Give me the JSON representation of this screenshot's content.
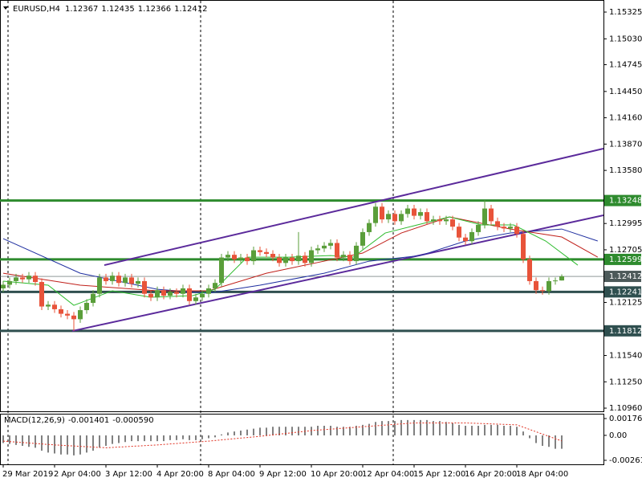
{
  "chart_data": {
    "type": "candlestick",
    "header": {
      "symbol": "EURUSD,H4",
      "values": [
        1.12367,
        1.12435,
        1.12366,
        1.12412
      ]
    },
    "categories": [
      "29 Mar 2019",
      null,
      null,
      null,
      null,
      null,
      null,
      null,
      "2 Apr 04:00",
      null,
      null,
      null,
      null,
      null,
      null,
      null,
      "3 Apr 12:00",
      null,
      null,
      null,
      null,
      null,
      null,
      null,
      "4 Apr 20:00",
      null,
      null,
      null,
      null,
      null,
      null,
      null,
      "8 Apr 04:00",
      null,
      null,
      null,
      null,
      null,
      null,
      null,
      "9 Apr 12:00",
      null,
      null,
      null,
      null,
      null,
      null,
      null,
      "10 Apr 20:00",
      null,
      null,
      null,
      null,
      null,
      null,
      null,
      "12 Apr 04:00",
      null,
      null,
      null,
      null,
      null,
      null,
      null,
      "15 Apr 12:00",
      null,
      null,
      null,
      null,
      null,
      null,
      null,
      "16 Apr 20:00",
      null,
      null,
      null,
      null,
      null,
      null,
      null,
      "18 Apr 04:00",
      null,
      null,
      null,
      null,
      null,
      null,
      null
    ],
    "open": [
      1.1228,
      1.1232,
      1.1236,
      1.124,
      1.1238,
      1.1242,
      1.1235,
      1.1208,
      1.121,
      1.1205,
      1.12,
      1.1198,
      1.1194,
      1.1204,
      1.1212,
      1.1222,
      1.124,
      1.1236,
      1.1242,
      1.1234,
      1.124,
      1.1233,
      1.1236,
      1.1222,
      1.1218,
      1.1226,
      1.122,
      1.1224,
      1.1222,
      1.1228,
      1.1214,
      1.1218,
      1.1222,
      1.1228,
      1.1234,
      1.1262,
      1.1265,
      1.126,
      1.1262,
      1.1258,
      1.127,
      1.1268,
      1.1266,
      1.1262,
      1.1256,
      1.1262,
      1.1258,
      1.1264,
      1.1256,
      1.127,
      1.1272,
      1.1275,
      1.1278,
      1.1262,
      1.1265,
      1.1258,
      1.1275,
      1.129,
      1.13,
      1.1318,
      1.1304,
      1.131,
      1.1302,
      1.131,
      1.1316,
      1.1308,
      1.1312,
      1.1302,
      1.1304,
      1.1302,
      1.1304,
      1.1296,
      1.1284,
      1.128,
      1.129,
      1.1298,
      1.1316,
      1.1302,
      1.1296,
      1.1294,
      1.1296,
      1.1288,
      1.126,
      1.1236,
      1.1226,
      1.1225,
      1.1236,
      1.12367
    ],
    "high": [
      1.1236,
      1.124,
      1.1244,
      1.1244,
      1.1246,
      1.1246,
      1.1239,
      1.1214,
      1.1214,
      1.1209,
      1.1204,
      1.1202,
      1.1208,
      1.1216,
      1.1226,
      1.1244,
      1.1244,
      1.1246,
      1.1246,
      1.1244,
      1.1244,
      1.124,
      1.124,
      1.1226,
      1.123,
      1.123,
      1.1228,
      1.1228,
      1.1232,
      1.1232,
      1.1222,
      1.1226,
      1.1232,
      1.1238,
      1.1266,
      1.1269,
      1.1269,
      1.1266,
      1.1266,
      1.1274,
      1.1274,
      1.1272,
      1.127,
      1.1266,
      1.1266,
      1.1266,
      1.129,
      1.1268,
      1.1274,
      1.1276,
      1.1279,
      1.1282,
      1.1282,
      1.1269,
      1.1269,
      1.1279,
      1.1294,
      1.1304,
      1.1322,
      1.1322,
      1.1314,
      1.1314,
      1.1314,
      1.132,
      1.132,
      1.1316,
      1.1316,
      1.1308,
      1.1308,
      1.1308,
      1.1308,
      1.13,
      1.1288,
      1.1294,
      1.1302,
      1.1325,
      1.132,
      1.1306,
      1.13,
      1.13,
      1.13,
      1.1292,
      1.1264,
      1.124,
      1.123,
      1.124,
      1.124,
      1.12435
    ],
    "low": [
      1.1224,
      1.1228,
      1.1232,
      1.1234,
      1.1234,
      1.1231,
      1.1204,
      1.1204,
      1.1201,
      1.1196,
      1.1194,
      1.1181,
      1.119,
      1.12,
      1.1208,
      1.1218,
      1.1232,
      1.1232,
      1.123,
      1.123,
      1.1229,
      1.1229,
      1.1218,
      1.1214,
      1.1214,
      1.1216,
      1.1216,
      1.1218,
      1.1218,
      1.121,
      1.121,
      1.1214,
      1.1218,
      1.1224,
      1.123,
      1.1258,
      1.1256,
      1.1256,
      1.1254,
      1.1254,
      1.1264,
      1.1262,
      1.1258,
      1.1252,
      1.1252,
      1.1254,
      1.1254,
      1.1252,
      1.1252,
      1.1266,
      1.1268,
      1.1271,
      1.1258,
      1.1258,
      1.1254,
      1.1254,
      1.1271,
      1.1286,
      1.1296,
      1.13,
      1.13,
      1.1298,
      1.1298,
      1.1306,
      1.1304,
      1.1304,
      1.1298,
      1.1298,
      1.1298,
      1.1298,
      1.1292,
      1.128,
      1.1276,
      1.1276,
      1.1286,
      1.1294,
      1.1298,
      1.1292,
      1.129,
      1.129,
      1.1284,
      1.1256,
      1.1232,
      1.1222,
      1.1221,
      1.1221,
      1.1232,
      1.12366
    ],
    "close": [
      1.1232,
      1.1236,
      1.124,
      1.1238,
      1.1242,
      1.1235,
      1.1208,
      1.121,
      1.1205,
      1.12,
      1.1198,
      1.1194,
      1.1204,
      1.1212,
      1.1222,
      1.124,
      1.1236,
      1.1242,
      1.1234,
      1.124,
      1.1233,
      1.1236,
      1.1222,
      1.1218,
      1.1226,
      1.122,
      1.1224,
      1.1222,
      1.1228,
      1.1214,
      1.1218,
      1.1222,
      1.1228,
      1.1234,
      1.1262,
      1.1265,
      1.126,
      1.1262,
      1.1258,
      1.127,
      1.1268,
      1.1266,
      1.1262,
      1.1256,
      1.1262,
      1.1258,
      1.1264,
      1.1256,
      1.127,
      1.1272,
      1.1275,
      1.1278,
      1.1262,
      1.1265,
      1.1258,
      1.1275,
      1.129,
      1.13,
      1.1318,
      1.1304,
      1.131,
      1.1302,
      1.131,
      1.1316,
      1.1308,
      1.1312,
      1.1302,
      1.1304,
      1.1302,
      1.1304,
      1.1296,
      1.1284,
      1.128,
      1.129,
      1.1298,
      1.1316,
      1.1302,
      1.1296,
      1.1294,
      1.1296,
      1.1288,
      1.126,
      1.1236,
      1.1226,
      1.1225,
      1.1236,
      1.12367,
      1.12412
    ],
    "up_color": "#5a9e3a",
    "down_color": "#e8533a",
    "ylim": [
      1.10925,
      1.15458
    ],
    "yticks": [
      {
        "value": 1.15325,
        "label": "1.15325"
      },
      {
        "value": 1.1503,
        "label": "1.15030"
      },
      {
        "value": 1.14745,
        "label": "1.14745"
      },
      {
        "value": 1.1445,
        "label": "1.14450"
      },
      {
        "value": 1.1416,
        "label": "1.14160"
      },
      {
        "value": 1.1387,
        "label": "1.13870"
      },
      {
        "value": 1.1358,
        "label": "1.13580"
      },
      {
        "value": 1.12995,
        "label": "1.12995"
      },
      {
        "value": 1.12705,
        "label": "1.12705"
      },
      {
        "value": 1.12125,
        "label": "1.12125"
      },
      {
        "value": 1.1154,
        "label": "1.11540"
      },
      {
        "value": 1.1125,
        "label": "1.11250"
      },
      {
        "value": 1.1096,
        "label": "1.10960"
      }
    ],
    "levels": [
      {
        "value": 1.13248,
        "color": "#2e8b2e"
      },
      {
        "value": 1.12599,
        "color": "#2e8b2e"
      },
      {
        "value": 1.12412,
        "color": "#4d5a5a"
      },
      {
        "value": 1.12241,
        "color": "#2f4f4f"
      },
      {
        "value": 1.11812,
        "color": "#2f4f4f"
      }
    ],
    "trendlines": [
      {
        "x": [
          15.75,
          93.5
        ],
        "values": [
          1.12536,
          1.1382
        ],
        "color": "#5b2a9b"
      },
      {
        "x": [
          10.75,
          93.5
        ],
        "values": [
          1.1181,
          1.13085
        ],
        "color": "#5b2a9b"
      }
    ],
    "moving_averages": [
      {
        "color": "#1f2fa0",
        "x": [
          0,
          12,
          24,
          32,
          40,
          50,
          57,
          65,
          72,
          79,
          87,
          92.6
        ],
        "values": [
          1.12828,
          1.12447,
          1.1227,
          1.12226,
          1.12315,
          1.12447,
          1.1258,
          1.12642,
          1.12802,
          1.1289,
          1.12934,
          1.12802
        ]
      },
      {
        "color": "#c0201a",
        "x": [
          0,
          12,
          24,
          32,
          41,
          50,
          56,
          62,
          69.5,
          79,
          87,
          92.6
        ],
        "values": [
          1.12447,
          1.12315,
          1.12253,
          1.12253,
          1.12447,
          1.1258,
          1.12669,
          1.1289,
          1.13067,
          1.12934,
          1.12846,
          1.12624
        ]
      },
      {
        "color": "#2dbb2d",
        "x": [
          0,
          7,
          11,
          17,
          23,
          29.5,
          33,
          38,
          44.5,
          51,
          54.5,
          59.5,
          64.5,
          69.5,
          74.5,
          79.5,
          84.5,
          89.5
        ],
        "values": [
          1.12359,
          1.12315,
          1.12093,
          1.12253,
          1.12182,
          1.122,
          1.1227,
          1.12624,
          1.12624,
          1.12642,
          1.12624,
          1.1289,
          1.12979,
          1.13067,
          1.12979,
          1.12979,
          1.12802,
          1.12536
        ]
      }
    ],
    "macd": {
      "label": "MACD(12,26,9)",
      "header_values": [
        -0.001401,
        {
          "value": -0.00059,
          "label": "-0.000590"
        }
      ],
      "ylim": [
        -0.00303,
        0.00218
      ],
      "yticks": [
        0.001761,
        {
          "value": 0,
          "label": "0.00"
        },
        -0.002611
      ],
      "histogram": [
        -0.0008,
        -0.0009,
        -0.001,
        -0.0011,
        -0.0012,
        -0.0013,
        -0.0016,
        -0.0018,
        -0.0019,
        -0.002,
        -0.002,
        -0.0021,
        -0.002,
        -0.0018,
        -0.0016,
        -0.0013,
        -0.0011,
        -0.0009,
        -0.0008,
        -0.0007,
        -0.0006,
        -0.0006,
        -0.0006,
        -0.0006,
        -0.0006,
        -0.0006,
        -0.0005,
        -0.0005,
        -0.0004,
        -0.0005,
        -0.0005,
        -0.0004,
        -0.0003,
        -0.0002,
        0.0001,
        0.0003,
        0.0004,
        0.0005,
        0.0006,
        0.0007,
        0.0008,
        0.0008,
        0.0009,
        0.0009,
        0.0009,
        0.0009,
        0.0009,
        0.0009,
        0.0009,
        0.001,
        0.001,
        0.001,
        0.0009,
        0.0009,
        0.0009,
        0.001,
        0.0011,
        0.0012,
        0.0014,
        0.0015,
        0.0015,
        0.0015,
        0.0016,
        0.0016,
        0.0016,
        0.0016,
        0.0016,
        0.0015,
        0.0015,
        0.0014,
        0.0013,
        0.0011,
        0.001,
        0.001,
        0.001,
        0.0011,
        0.0011,
        0.0011,
        0.001,
        0.001,
        0.0009,
        0.0004,
        -0.0003,
        -0.0008,
        -0.0011,
        -0.0012,
        -0.0014,
        -0.001401
      ],
      "signal": {
        "color": "#e03020",
        "x": [
          0,
          8,
          16,
          24,
          32,
          40,
          48,
          56,
          64,
          72,
          80,
          87
        ],
        "values": [
          -0.0006,
          -0.001,
          -0.0013,
          -0.001,
          -0.0006,
          -0.0001,
          0.0005,
          0.0009,
          0.0013,
          0.0013,
          0.0011,
          -0.00059
        ]
      }
    }
  }
}
